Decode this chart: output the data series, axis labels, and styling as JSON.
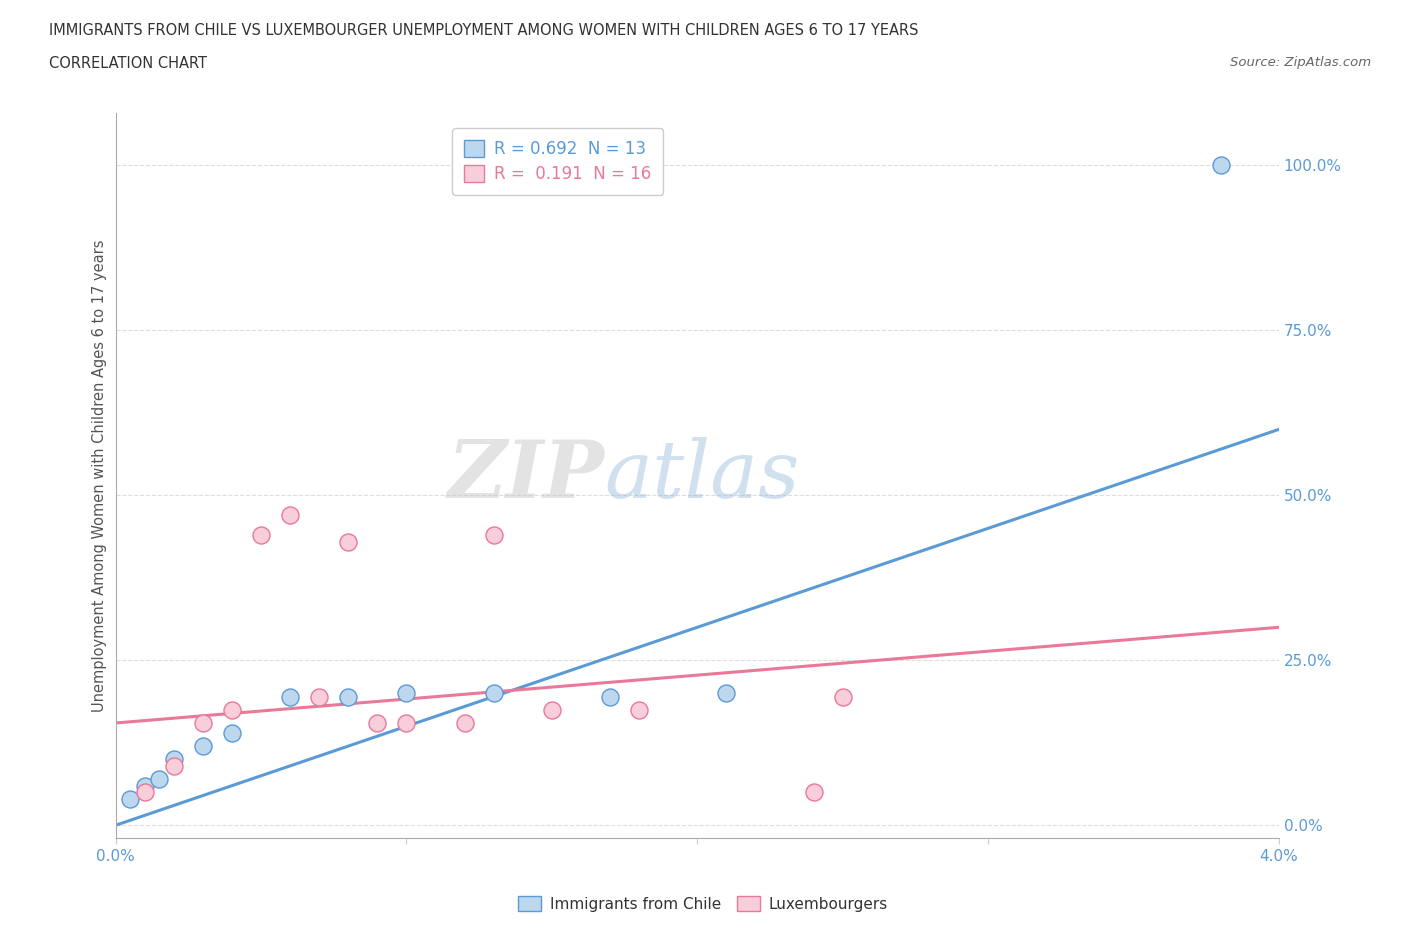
{
  "title_line1": "IMMIGRANTS FROM CHILE VS LUXEMBOURGER UNEMPLOYMENT AMONG WOMEN WITH CHILDREN AGES 6 TO 17 YEARS",
  "title_line2": "CORRELATION CHART",
  "source": "Source: ZipAtlas.com",
  "ylabel": "Unemployment Among Women with Children Ages 6 to 17 years",
  "xlim": [
    0.0,
    0.04
  ],
  "ylim": [
    -0.02,
    1.08
  ],
  "xticks": [
    0.0,
    0.01,
    0.02,
    0.03,
    0.04
  ],
  "xtick_labels": [
    "0.0%",
    "",
    "",
    "",
    "4.0%"
  ],
  "yticks": [
    0.0,
    0.25,
    0.5,
    0.75,
    1.0
  ],
  "ytick_labels": [
    "0.0%",
    "25.0%",
    "50.0%",
    "75.0%",
    "100.0%"
  ],
  "blue_R": 0.692,
  "blue_N": 13,
  "pink_R": 0.191,
  "pink_N": 16,
  "blue_color": "#BDD7EE",
  "blue_edge_color": "#5B9BD5",
  "pink_color": "#F8CEDB",
  "pink_edge_color": "#E97899",
  "blue_scatter_x": [
    0.0005,
    0.001,
    0.0015,
    0.002,
    0.003,
    0.004,
    0.006,
    0.008,
    0.01,
    0.013,
    0.017,
    0.021,
    0.038
  ],
  "blue_scatter_y": [
    0.04,
    0.06,
    0.07,
    0.1,
    0.12,
    0.14,
    0.195,
    0.195,
    0.2,
    0.2,
    0.195,
    0.2,
    1.0
  ],
  "pink_scatter_x": [
    0.001,
    0.002,
    0.003,
    0.004,
    0.005,
    0.006,
    0.007,
    0.008,
    0.009,
    0.01,
    0.012,
    0.013,
    0.015,
    0.018,
    0.024,
    0.025
  ],
  "pink_scatter_y": [
    0.05,
    0.09,
    0.155,
    0.175,
    0.44,
    0.47,
    0.195,
    0.43,
    0.155,
    0.155,
    0.155,
    0.44,
    0.175,
    0.175,
    0.05,
    0.195
  ],
  "blue_trend_x": [
    0.0,
    0.04
  ],
  "blue_trend_y": [
    0.0,
    0.6
  ],
  "pink_trend_x": [
    0.0,
    0.04
  ],
  "pink_trend_y": [
    0.155,
    0.3
  ],
  "watermark_zip": "ZIP",
  "watermark_atlas": "atlas",
  "background_color": "#FFFFFF",
  "grid_color": "#DDDDDD",
  "marker_size": 150,
  "title_color": "#333333",
  "tick_color_blue": "#5B9BD5",
  "ylabel_color": "#555555"
}
